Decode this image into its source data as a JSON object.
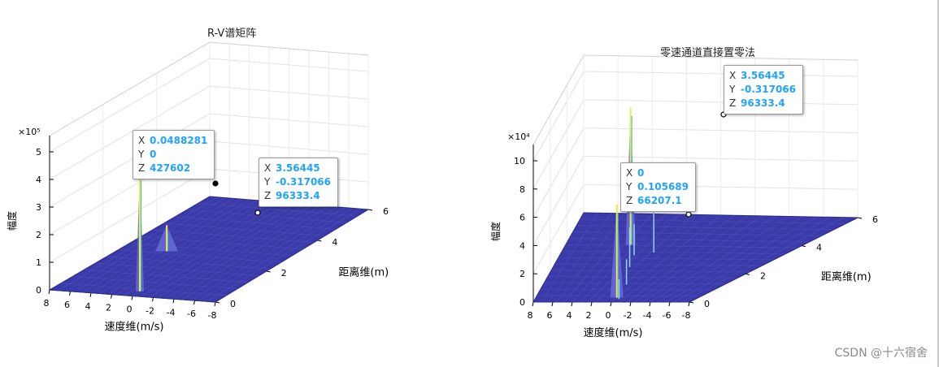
{
  "watermark": "CSDN @十六宿舍",
  "chart_data": [
    {
      "type": "surface3d",
      "title": "R-V谱矩阵",
      "xlabel": "速度维(m/s)",
      "ylabel": "距离维(m)",
      "zlabel": "幅度",
      "xticks": [
        "8",
        "6",
        "4",
        "2",
        "0",
        "-2",
        "-4",
        "-6",
        "-8"
      ],
      "yticks": [
        "0",
        "2",
        "4",
        "6"
      ],
      "zticks": [
        "0",
        "1",
        "2",
        "3",
        "4",
        "5"
      ],
      "zexponent": "×10⁵",
      "xlim": [
        -8,
        8
      ],
      "ylim": [
        0,
        6
      ],
      "zlim": [
        0,
        500000
      ],
      "peaks": [
        {
          "x": 0.0488281,
          "y": 0,
          "z": 427602
        },
        {
          "x": 3.56445,
          "y": -0.317066,
          "z": 96333.4
        }
      ],
      "datatips": [
        {
          "x": "0.0488281",
          "y": "0",
          "z": "427602"
        },
        {
          "x": "3.56445",
          "y": "-0.317066",
          "z": "96333.4"
        }
      ],
      "colors": {
        "surface": "#3a3aa8",
        "peak": "#f0e84a"
      }
    },
    {
      "type": "surface3d",
      "title": "零速通道直接置零法",
      "xlabel": "速度维(m/s)",
      "ylabel": "距离维(m)",
      "zlabel": "幅度",
      "xticks": [
        "8",
        "6",
        "4",
        "2",
        "0",
        "-2",
        "-4",
        "-6",
        "-8"
      ],
      "yticks": [
        "0",
        "2",
        "4",
        "6"
      ],
      "zticks": [
        "0",
        "2",
        "4",
        "6",
        "8",
        "10"
      ],
      "zexponent": "×10⁴",
      "xlim": [
        -8,
        8
      ],
      "ylim": [
        0,
        6
      ],
      "zlim": [
        0,
        100000
      ],
      "peaks": [
        {
          "x": 3.56445,
          "y": -0.317066,
          "z": 96333.4
        },
        {
          "x": 0,
          "y": 0.105689,
          "z": 66207.1
        }
      ],
      "datatips": [
        {
          "x": "3.56445",
          "y": "-0.317066",
          "z": "96333.4"
        },
        {
          "x": "0",
          "y": "0.105689",
          "z": "66207.1"
        }
      ],
      "colors": {
        "surface": "#3a3aa8",
        "peak": "#f0e84a"
      }
    }
  ]
}
